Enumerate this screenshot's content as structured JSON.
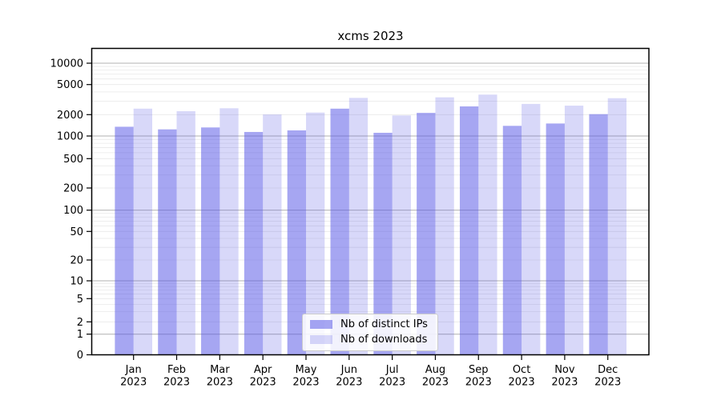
{
  "chart": {
    "title": "xcms 2023"
  },
  "chart_data": {
    "type": "bar",
    "title": "xcms 2023",
    "categories": [
      "Jan 2023",
      "Feb 2023",
      "Mar 2023",
      "Apr 2023",
      "May 2023",
      "Jun 2023",
      "Jul 2023",
      "Aug 2023",
      "Sep 2023",
      "Oct 2023",
      "Nov 2023",
      "Dec 2023"
    ],
    "category_lines": [
      {
        "month": "Jan",
        "year": "2023"
      },
      {
        "month": "Feb",
        "year": "2023"
      },
      {
        "month": "Mar",
        "year": "2023"
      },
      {
        "month": "Apr",
        "year": "2023"
      },
      {
        "month": "May",
        "year": "2023"
      },
      {
        "month": "Jun",
        "year": "2023"
      },
      {
        "month": "Jul",
        "year": "2023"
      },
      {
        "month": "Aug",
        "year": "2023"
      },
      {
        "month": "Sep",
        "year": "2023"
      },
      {
        "month": "Oct",
        "year": "2023"
      },
      {
        "month": "Nov",
        "year": "2023"
      },
      {
        "month": "Dec",
        "year": "2023"
      }
    ],
    "series": [
      {
        "name": "Nb of distinct IPs",
        "color": "rgba(85,85,230,0.52)",
        "values": [
          1350,
          1240,
          1320,
          1140,
          1200,
          2400,
          1110,
          2110,
          2570,
          1390,
          1500,
          2030
        ]
      },
      {
        "name": "Nb of downloads",
        "color": "rgba(85,85,230,0.23)",
        "values": [
          2400,
          2220,
          2430,
          2010,
          2130,
          3330,
          1950,
          3390,
          3680,
          2770,
          2630,
          3300
        ]
      }
    ],
    "xlabel": "",
    "ylabel": "",
    "y_axis": {
      "scale": "symlog",
      "tick_labels": [
        "0",
        "1",
        "2",
        "5",
        "10",
        "20",
        "50",
        "100",
        "200",
        "500",
        "1000",
        "2000",
        "5000",
        "10000"
      ],
      "tick_values": [
        0,
        1,
        2,
        5,
        10,
        20,
        50,
        100,
        200,
        500,
        1000,
        2000,
        5000,
        10000
      ],
      "major_grid_values": [
        1,
        10,
        100,
        1000,
        10000
      ]
    },
    "ylim": [
      0,
      16000
    ],
    "grid": true,
    "legend_position": "lower center",
    "colors": {
      "major_grid": "#b0b0b0",
      "minor_grid": "#e8e8e8",
      "spine": "#000000",
      "text": "#000000"
    }
  }
}
